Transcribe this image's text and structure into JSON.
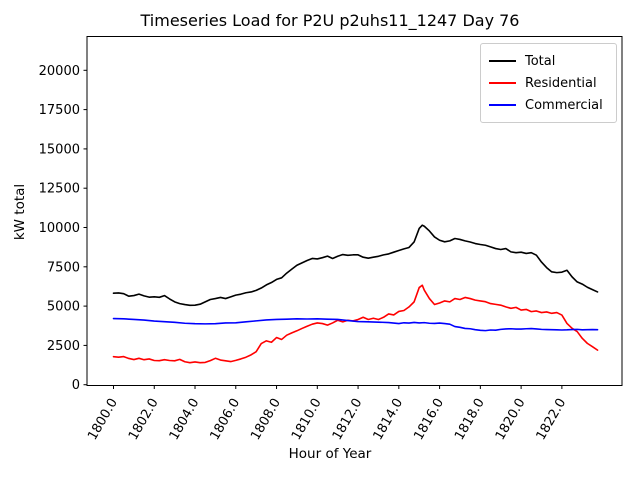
{
  "figure": {
    "title": "Timeseries Load for P2U p2uhs11_1247  Day 76",
    "xlabel": "Hour of Year",
    "ylabel": "kW total"
  },
  "legend": {
    "border_color": "#cccccc",
    "entries": [
      {
        "label": "Total",
        "color": "#000000"
      },
      {
        "label": "Residential",
        "color": "#ff0000"
      },
      {
        "label": "Commercial",
        "color": "#0000ff"
      }
    ]
  },
  "chart_data": {
    "type": "line",
    "title": "Timeseries Load for P2U p2uhs11_1247  Day 76",
    "xlabel": "Hour of Year",
    "ylabel": "kW total",
    "xlim": [
      1798.7,
      1824.95
    ],
    "ylim": [
      -50,
      22150
    ],
    "grid": false,
    "legend_position": "upper right",
    "xticks": {
      "values": [
        1800,
        1802,
        1804,
        1806,
        1808,
        1810,
        1812,
        1814,
        1816,
        1818,
        1820,
        1822
      ],
      "labels": [
        "1800.0",
        "1802.0",
        "1804.0",
        "1806.0",
        "1808.0",
        "1810.0",
        "1812.0",
        "1814.0",
        "1816.0",
        "1818.0",
        "1820.0",
        "1822.0"
      ],
      "rotation_deg": 60
    },
    "yticks": {
      "values": [
        0,
        2500,
        5000,
        7500,
        10000,
        12500,
        15000,
        17500,
        20000
      ],
      "labels": [
        "0",
        "2500",
        "5000",
        "7500",
        "10000",
        "12500",
        "15000",
        "17500",
        "20000"
      ]
    },
    "series": [
      {
        "name": "Total",
        "color": "#000000",
        "line_width": 1.6,
        "points": [
          [
            1800,
            5820
          ],
          [
            1800.25,
            5840
          ],
          [
            1800.5,
            5790
          ],
          [
            1800.75,
            5630
          ],
          [
            1801,
            5670
          ],
          [
            1801.25,
            5760
          ],
          [
            1801.5,
            5650
          ],
          [
            1801.75,
            5570
          ],
          [
            1802,
            5590
          ],
          [
            1802.25,
            5560
          ],
          [
            1802.5,
            5670
          ],
          [
            1802.75,
            5460
          ],
          [
            1803,
            5270
          ],
          [
            1803.25,
            5160
          ],
          [
            1803.5,
            5100
          ],
          [
            1803.75,
            5050
          ],
          [
            1804,
            5060
          ],
          [
            1804.25,
            5120
          ],
          [
            1804.5,
            5270
          ],
          [
            1804.75,
            5420
          ],
          [
            1805,
            5480
          ],
          [
            1805.25,
            5550
          ],
          [
            1805.5,
            5480
          ],
          [
            1805.75,
            5590
          ],
          [
            1806,
            5700
          ],
          [
            1806.25,
            5760
          ],
          [
            1806.5,
            5850
          ],
          [
            1806.75,
            5900
          ],
          [
            1807,
            6000
          ],
          [
            1807.25,
            6150
          ],
          [
            1807.5,
            6350
          ],
          [
            1807.75,
            6500
          ],
          [
            1808,
            6700
          ],
          [
            1808.25,
            6800
          ],
          [
            1808.5,
            7100
          ],
          [
            1808.75,
            7350
          ],
          [
            1809,
            7600
          ],
          [
            1809.25,
            7750
          ],
          [
            1809.5,
            7900
          ],
          [
            1809.75,
            8030
          ],
          [
            1810,
            8000
          ],
          [
            1810.25,
            8080
          ],
          [
            1810.5,
            8180
          ],
          [
            1810.75,
            8030
          ],
          [
            1811,
            8170
          ],
          [
            1811.25,
            8280
          ],
          [
            1811.5,
            8230
          ],
          [
            1811.75,
            8260
          ],
          [
            1812,
            8260
          ],
          [
            1812.25,
            8110
          ],
          [
            1812.5,
            8050
          ],
          [
            1812.75,
            8110
          ],
          [
            1813,
            8170
          ],
          [
            1813.25,
            8260
          ],
          [
            1813.5,
            8320
          ],
          [
            1813.75,
            8430
          ],
          [
            1814,
            8540
          ],
          [
            1814.25,
            8640
          ],
          [
            1814.5,
            8730
          ],
          [
            1814.75,
            9080
          ],
          [
            1815,
            9940
          ],
          [
            1815.15,
            10150
          ],
          [
            1815.25,
            10080
          ],
          [
            1815.5,
            9780
          ],
          [
            1815.75,
            9400
          ],
          [
            1816,
            9190
          ],
          [
            1816.25,
            9090
          ],
          [
            1816.5,
            9150
          ],
          [
            1816.75,
            9300
          ],
          [
            1817,
            9240
          ],
          [
            1817.25,
            9150
          ],
          [
            1817.5,
            9080
          ],
          [
            1817.75,
            8980
          ],
          [
            1818,
            8920
          ],
          [
            1818.25,
            8870
          ],
          [
            1818.5,
            8770
          ],
          [
            1818.75,
            8660
          ],
          [
            1819,
            8600
          ],
          [
            1819.25,
            8660
          ],
          [
            1819.5,
            8450
          ],
          [
            1819.75,
            8400
          ],
          [
            1820,
            8430
          ],
          [
            1820.25,
            8350
          ],
          [
            1820.5,
            8400
          ],
          [
            1820.75,
            8240
          ],
          [
            1821,
            7800
          ],
          [
            1821.25,
            7450
          ],
          [
            1821.5,
            7180
          ],
          [
            1821.75,
            7130
          ],
          [
            1822,
            7160
          ],
          [
            1822.25,
            7280
          ],
          [
            1822.5,
            6860
          ],
          [
            1822.75,
            6540
          ],
          [
            1823,
            6400
          ],
          [
            1823.25,
            6200
          ],
          [
            1823.5,
            6050
          ],
          [
            1823.75,
            5900
          ]
        ]
      },
      {
        "name": "Residential",
        "color": "#ff0000",
        "line_width": 1.6,
        "points": [
          [
            1800,
            1780
          ],
          [
            1800.25,
            1750
          ],
          [
            1800.5,
            1790
          ],
          [
            1800.75,
            1670
          ],
          [
            1801,
            1600
          ],
          [
            1801.25,
            1680
          ],
          [
            1801.5,
            1590
          ],
          [
            1801.75,
            1640
          ],
          [
            1802,
            1540
          ],
          [
            1802.25,
            1530
          ],
          [
            1802.5,
            1590
          ],
          [
            1802.75,
            1540
          ],
          [
            1803,
            1520
          ],
          [
            1803.25,
            1610
          ],
          [
            1803.5,
            1460
          ],
          [
            1803.75,
            1400
          ],
          [
            1804,
            1450
          ],
          [
            1804.25,
            1400
          ],
          [
            1804.5,
            1420
          ],
          [
            1804.75,
            1530
          ],
          [
            1805,
            1680
          ],
          [
            1805.25,
            1570
          ],
          [
            1805.5,
            1520
          ],
          [
            1805.75,
            1470
          ],
          [
            1806,
            1550
          ],
          [
            1806.25,
            1640
          ],
          [
            1806.5,
            1750
          ],
          [
            1806.75,
            1900
          ],
          [
            1807,
            2100
          ],
          [
            1807.25,
            2620
          ],
          [
            1807.5,
            2790
          ],
          [
            1807.75,
            2700
          ],
          [
            1808,
            3000
          ],
          [
            1808.25,
            2880
          ],
          [
            1808.5,
            3150
          ],
          [
            1808.75,
            3300
          ],
          [
            1809,
            3430
          ],
          [
            1809.25,
            3580
          ],
          [
            1809.5,
            3720
          ],
          [
            1809.75,
            3850
          ],
          [
            1810,
            3930
          ],
          [
            1810.25,
            3890
          ],
          [
            1810.5,
            3790
          ],
          [
            1810.75,
            3930
          ],
          [
            1811,
            4100
          ],
          [
            1811.25,
            4000
          ],
          [
            1811.5,
            4100
          ],
          [
            1811.75,
            4060
          ],
          [
            1812,
            4150
          ],
          [
            1812.25,
            4290
          ],
          [
            1812.5,
            4150
          ],
          [
            1812.75,
            4230
          ],
          [
            1813,
            4150
          ],
          [
            1813.25,
            4290
          ],
          [
            1813.5,
            4500
          ],
          [
            1813.75,
            4440
          ],
          [
            1814,
            4660
          ],
          [
            1814.25,
            4720
          ],
          [
            1814.5,
            4950
          ],
          [
            1814.75,
            5270
          ],
          [
            1815,
            6180
          ],
          [
            1815.15,
            6330
          ],
          [
            1815.25,
            6010
          ],
          [
            1815.5,
            5480
          ],
          [
            1815.75,
            5100
          ],
          [
            1816,
            5200
          ],
          [
            1816.25,
            5330
          ],
          [
            1816.5,
            5270
          ],
          [
            1816.75,
            5480
          ],
          [
            1817,
            5420
          ],
          [
            1817.25,
            5550
          ],
          [
            1817.5,
            5480
          ],
          [
            1817.75,
            5380
          ],
          [
            1818,
            5330
          ],
          [
            1818.25,
            5280
          ],
          [
            1818.5,
            5160
          ],
          [
            1818.75,
            5110
          ],
          [
            1819,
            5060
          ],
          [
            1819.25,
            4950
          ],
          [
            1819.5,
            4860
          ],
          [
            1819.75,
            4920
          ],
          [
            1820,
            4750
          ],
          [
            1820.25,
            4790
          ],
          [
            1820.5,
            4650
          ],
          [
            1820.75,
            4690
          ],
          [
            1821,
            4590
          ],
          [
            1821.25,
            4630
          ],
          [
            1821.5,
            4540
          ],
          [
            1821.75,
            4590
          ],
          [
            1822,
            4430
          ],
          [
            1822.25,
            3900
          ],
          [
            1822.5,
            3590
          ],
          [
            1822.75,
            3380
          ],
          [
            1823,
            2950
          ],
          [
            1823.25,
            2630
          ],
          [
            1823.5,
            2420
          ],
          [
            1823.75,
            2200
          ]
        ]
      },
      {
        "name": "Commercial",
        "color": "#0000ff",
        "line_width": 1.6,
        "points": [
          [
            1800,
            4210
          ],
          [
            1800.5,
            4190
          ],
          [
            1801,
            4150
          ],
          [
            1801.5,
            4110
          ],
          [
            1802,
            4050
          ],
          [
            1802.5,
            4010
          ],
          [
            1803,
            3970
          ],
          [
            1803.5,
            3910
          ],
          [
            1804,
            3880
          ],
          [
            1804.5,
            3870
          ],
          [
            1805,
            3880
          ],
          [
            1805.5,
            3930
          ],
          [
            1806,
            3940
          ],
          [
            1806.5,
            4000
          ],
          [
            1807,
            4060
          ],
          [
            1807.5,
            4120
          ],
          [
            1808,
            4150
          ],
          [
            1808.5,
            4170
          ],
          [
            1809,
            4190
          ],
          [
            1809.5,
            4180
          ],
          [
            1810,
            4190
          ],
          [
            1810.5,
            4170
          ],
          [
            1811,
            4150
          ],
          [
            1811.5,
            4080
          ],
          [
            1812,
            4020
          ],
          [
            1812.5,
            4000
          ],
          [
            1813,
            3980
          ],
          [
            1813.5,
            3955
          ],
          [
            1814,
            3890
          ],
          [
            1814.25,
            3940
          ],
          [
            1814.5,
            3920
          ],
          [
            1814.75,
            3960
          ],
          [
            1815,
            3930
          ],
          [
            1815.25,
            3950
          ],
          [
            1815.5,
            3910
          ],
          [
            1815.75,
            3900
          ],
          [
            1816,
            3920
          ],
          [
            1816.25,
            3890
          ],
          [
            1816.5,
            3850
          ],
          [
            1816.75,
            3700
          ],
          [
            1817,
            3650
          ],
          [
            1817.25,
            3580
          ],
          [
            1817.5,
            3560
          ],
          [
            1817.75,
            3500
          ],
          [
            1818,
            3460
          ],
          [
            1818.25,
            3440
          ],
          [
            1818.5,
            3480
          ],
          [
            1818.75,
            3470
          ],
          [
            1819,
            3520
          ],
          [
            1819.25,
            3550
          ],
          [
            1819.5,
            3560
          ],
          [
            1819.75,
            3540
          ],
          [
            1820,
            3540
          ],
          [
            1820.25,
            3560
          ],
          [
            1820.5,
            3570
          ],
          [
            1820.75,
            3550
          ],
          [
            1821,
            3520
          ],
          [
            1821.25,
            3510
          ],
          [
            1821.5,
            3500
          ],
          [
            1821.75,
            3490
          ],
          [
            1822,
            3480
          ],
          [
            1822.25,
            3490
          ],
          [
            1822.5,
            3510
          ],
          [
            1822.75,
            3520
          ],
          [
            1823,
            3490
          ],
          [
            1823.25,
            3500
          ],
          [
            1823.5,
            3510
          ],
          [
            1823.75,
            3500
          ]
        ]
      }
    ]
  }
}
